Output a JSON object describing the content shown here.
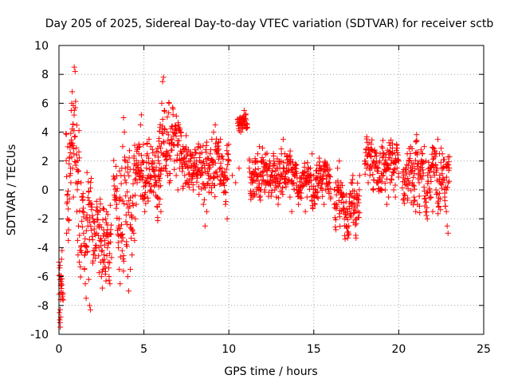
{
  "chart_data": {
    "type": "scatter",
    "title": "Day 205 of 2025, Sidereal Day-to-day VTEC variation (SDTVAR) for receiver sctb",
    "xlabel": "GPS time / hours",
    "ylabel": "SDTVAR / TECUs",
    "xlim": [
      0,
      25
    ],
    "ylim": [
      -10,
      10
    ],
    "xticks": [
      "0",
      "5",
      "10",
      "15",
      "20",
      "25"
    ],
    "yticks": [
      "-10",
      "-8",
      "-6",
      "-4",
      "-2",
      "0",
      "2",
      "4",
      "6",
      "8",
      "10"
    ],
    "grid": true,
    "marker": "plus",
    "color": "#ff0000",
    "series": [
      {
        "name": "SDTVAR",
        "x": [
          0.0,
          0.03,
          0.06,
          0.08,
          0.1,
          0.12,
          0.15,
          0.18,
          0.05,
          0.07,
          0.45,
          0.5,
          0.55,
          0.6,
          0.62,
          0.65,
          0.68,
          0.7,
          0.72,
          0.75,
          0.78,
          0.8,
          0.85,
          0.88,
          0.9,
          0.95,
          1.0,
          1.05,
          1.1,
          1.12,
          1.15,
          1.2,
          1.3,
          1.35,
          1.4,
          1.45,
          1.5,
          1.55,
          1.6,
          1.65,
          1.7,
          1.75,
          1.8,
          1.85,
          1.9,
          1.95,
          2.0,
          2.1,
          2.2,
          2.3,
          2.4,
          2.45,
          2.5,
          2.55,
          2.6,
          2.65,
          2.7,
          2.75,
          2.8,
          2.85,
          2.9,
          2.95,
          3.0,
          3.3,
          3.4,
          3.5,
          3.55,
          3.6,
          3.65,
          3.7,
          3.75,
          3.8,
          3.85,
          3.9,
          3.95,
          4.0,
          4.05,
          4.1,
          4.2,
          4.3,
          4.4,
          4.45,
          4.5,
          4.55,
          4.6,
          4.65,
          4.7,
          4.75,
          4.8,
          4.85,
          4.9,
          4.95,
          5.0,
          5.05,
          5.1,
          5.15,
          5.2,
          5.3,
          5.4,
          5.5,
          5.6,
          5.7,
          5.8,
          5.9,
          6.0,
          6.05,
          6.1,
          6.15,
          6.2,
          6.3,
          6.4,
          6.5,
          6.6,
          6.7,
          6.8,
          6.9,
          7.0,
          7.1,
          7.2,
          7.3,
          7.4,
          7.5,
          7.6,
          7.7,
          7.8,
          7.9,
          8.0,
          8.1,
          8.2,
          8.3,
          8.4,
          8.5,
          8.6,
          8.7,
          8.8,
          8.9,
          9.0,
          9.1,
          9.2,
          9.3,
          9.4,
          9.5,
          9.6,
          9.7,
          9.8,
          9.9,
          10.0,
          10.2,
          10.4,
          10.6,
          10.7,
          10.8,
          10.9,
          11.2,
          11.3,
          11.4,
          11.5,
          11.6,
          11.7,
          11.8,
          11.9,
          12.0,
          12.1,
          12.2,
          12.3,
          12.4,
          12.5,
          12.6,
          12.7,
          12.8,
          12.9,
          13.0,
          13.1,
          13.2,
          13.3,
          13.4,
          13.5,
          13.6,
          13.7,
          13.8,
          13.9,
          14.0,
          14.1,
          14.2,
          14.3,
          14.4,
          14.5,
          14.6,
          14.7,
          14.8,
          14.9,
          15.0,
          15.1,
          15.2,
          15.3,
          15.4,
          15.5,
          15.6,
          15.7,
          15.8,
          15.9,
          16.0,
          16.2,
          16.3,
          16.4,
          16.5,
          16.6,
          16.7,
          16.8,
          16.9,
          17.0,
          17.1,
          17.2,
          17.3,
          17.4,
          17.5,
          17.6,
          17.7,
          18.0,
          18.1,
          18.2,
          18.3,
          18.4,
          18.5,
          18.6,
          18.7,
          18.8,
          18.9,
          19.0,
          19.1,
          19.2,
          19.3,
          19.4,
          19.5,
          19.6,
          19.7,
          19.8,
          19.9,
          20.0,
          20.3,
          20.4,
          20.5,
          20.6,
          20.7,
          20.8,
          20.9,
          21.0,
          21.1,
          21.2,
          21.3,
          21.4,
          21.5,
          21.6,
          21.7,
          21.8,
          21.9,
          22.0,
          22.1,
          22.2,
          22.3,
          22.4,
          22.5,
          22.6,
          22.7,
          22.8,
          22.85,
          22.9
        ],
        "y": [
          -5.0,
          -8.5,
          -9.2,
          -9.5,
          -8.8,
          -6.5,
          -4.8,
          -4.2,
          -9.0,
          -8.3,
          -3.0,
          -2.0,
          -3.5,
          1.8,
          2.2,
          1.0,
          1.5,
          0.5,
          5.5,
          6.0,
          6.8,
          1.5,
          -0.5,
          2.5,
          8.5,
          8.2,
          0.5,
          -1.5,
          -3.5,
          -4.5,
          -2.5,
          -5.0,
          0.5,
          -0.5,
          -1.5,
          -3.0,
          -5.5,
          -6.5,
          -7.5,
          1.2,
          -2.5,
          -6.2,
          -8.0,
          -8.3,
          0.8,
          -1.0,
          -2.0,
          -3.0,
          -4.0,
          -2.5,
          -3.5,
          -5.0,
          -6.0,
          -6.8,
          -5.5,
          -4.5,
          -3.5,
          -2.0,
          -1.5,
          -4.0,
          -5.0,
          -6.0,
          -6.5,
          -0.5,
          -1.0,
          -4.0,
          -5.5,
          -6.5,
          1.0,
          1.5,
          3.0,
          5.0,
          4.0,
          2.0,
          0.5,
          -1.0,
          -6.0,
          -7.0,
          -5.5,
          -4.5,
          -3.0,
          -3.5,
          -2.0,
          -1.0,
          0.5,
          1.5,
          2.5,
          3.0,
          4.5,
          5.2,
          2.0,
          1.0,
          -0.5,
          -1.5,
          0.5,
          1.5,
          2.5,
          3.5,
          3.0,
          2.0,
          1.0,
          0.5,
          -0.5,
          -1.0,
          -1.5,
          6.0,
          7.5,
          7.8,
          5.5,
          2.5,
          1.0,
          0.5,
          3.5,
          4.0,
          2.0,
          1.0,
          0.0,
          1.5,
          2.5,
          3.0,
          1.0,
          0.5,
          1.5,
          2.0,
          1.0,
          0.0,
          1.5,
          2.0,
          3.0,
          2.5,
          1.5,
          -1.0,
          -2.5,
          -1.5,
          1.0,
          2.5,
          3.5,
          4.0,
          4.5,
          3.0,
          2.5,
          3.5,
          1.5,
          0.5,
          -1.0,
          -2.0,
          2.0,
          1.0,
          0.5,
          1.5,
          4.0,
          5.0,
          5.5,
          1.5,
          0.5,
          -0.5,
          1.0,
          2.0,
          2.5,
          3.0,
          2.0,
          1.0,
          0.0,
          0.5,
          1.5,
          2.0,
          1.0,
          0.5,
          0.0,
          -0.5,
          -1.0,
          1.5,
          2.5,
          3.5,
          2.5,
          1.5,
          0.5,
          -0.5,
          -1.5,
          0.5,
          1.0,
          0.0,
          -1.0,
          -0.5,
          0.5,
          1.0,
          -1.5,
          -0.5,
          0.5,
          1.5,
          2.5,
          1.0,
          0.0,
          -0.5,
          0.5,
          1.5,
          0.5,
          -1.0,
          0.0,
          1.0,
          0.5,
          -0.5,
          -1.0,
          0.5,
          1.5,
          2.0,
          0.5,
          -0.5,
          -2.0,
          -2.5,
          -1.5,
          -0.5,
          0.5,
          1.0,
          -1.0,
          -2.0,
          -1.5,
          1.0,
          2.0,
          1.5,
          0.5,
          1.0,
          1.5,
          2.0,
          1.5,
          0.5,
          1.5,
          2.5,
          3.0,
          1.0,
          0.0,
          -1.0,
          -0.5,
          0.5,
          1.0,
          0.0,
          -0.5,
          1.5,
          2.0,
          1.0,
          1.5,
          2.5,
          2.0,
          1.5,
          0.5,
          -0.5,
          -1.5,
          -1.0,
          0.5,
          1.0,
          2.5,
          3.0,
          2.0,
          1.0,
          0.0,
          -0.5,
          -1.5,
          1.0,
          2.5,
          3.5,
          2.5,
          1.5,
          0.5,
          -0.5,
          -1.5,
          -2.5,
          -3.0
        ]
      }
    ],
    "detail_bands": [
      {
        "x": [
          0.0,
          0.25
        ],
        "y": [
          -9.6,
          -4.0
        ]
      },
      {
        "x": [
          0.4,
          1.2
        ],
        "y": [
          -5.0,
          8.7
        ]
      },
      {
        "x": [
          1.2,
          3.1
        ],
        "y": [
          -8.4,
          2.3
        ]
      },
      {
        "x": [
          3.2,
          4.4
        ],
        "y": [
          -7.2,
          5.3
        ]
      },
      {
        "x": [
          4.4,
          6.0
        ],
        "y": [
          -3.0,
          5.3
        ]
      },
      {
        "x": [
          5.8,
          7.2
        ],
        "y": [
          -1.5,
          8.0
        ]
      },
      {
        "x": [
          7.2,
          10.0
        ],
        "y": [
          -2.0,
          5.5
        ]
      },
      {
        "x": [
          10.5,
          11.1
        ],
        "y": [
          3.5,
          5.8
        ]
      },
      {
        "x": [
          11.2,
          13.8
        ],
        "y": [
          -2.0,
          4.2
        ]
      },
      {
        "x": [
          13.8,
          16.0
        ],
        "y": [
          -2.0,
          3.0
        ]
      },
      {
        "x": [
          16.2,
          17.7
        ],
        "y": [
          -4.5,
          2.0
        ]
      },
      {
        "x": [
          18.0,
          20.0
        ],
        "y": [
          -1.5,
          4.8
        ]
      },
      {
        "x": [
          20.2,
          23.0
        ],
        "y": [
          -3.2,
          4.8
        ]
      }
    ]
  }
}
